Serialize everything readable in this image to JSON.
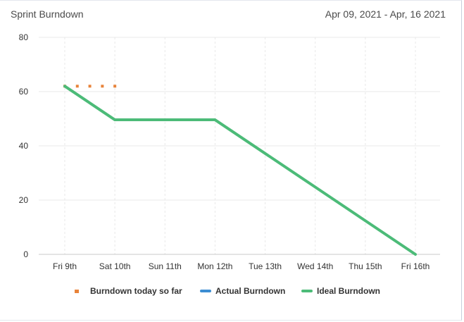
{
  "header": {
    "title": "Sprint Burndown",
    "date_range": "Apr 09, 2021 - Apr, 16 2021"
  },
  "colors": {
    "ideal": "#4cbb78",
    "actual": "#3c8dd2",
    "today": "#e8833a",
    "grid": "#e8e8e8",
    "axis": "#c8c8c8"
  },
  "chart_data": {
    "type": "line",
    "x": [
      "Fri 9th",
      "Sat 10th",
      "Sun 11th",
      "Mon 12th",
      "Tue 13th",
      "Wed 14th",
      "Thu 15th",
      "Fri 16th"
    ],
    "ylim": [
      0,
      80
    ],
    "yticks": [
      0,
      20,
      40,
      60,
      80
    ],
    "grid": true,
    "legend_position": "bottom",
    "series": [
      {
        "name": "Burndown today so far",
        "style": "dotted",
        "points": [
          {
            "x": "Fri 9th",
            "y": 62
          },
          {
            "x": "Sat 10th",
            "y": 62
          }
        ]
      },
      {
        "name": "Actual Burndown",
        "style": "line",
        "points": []
      },
      {
        "name": "Ideal Burndown",
        "style": "line",
        "points": [
          {
            "x": "Fri 9th",
            "y": 62
          },
          {
            "x": "Sat 10th",
            "y": 49.6
          },
          {
            "x": "Sun 11th",
            "y": 49.6
          },
          {
            "x": "Mon 12th",
            "y": 49.6
          },
          {
            "x": "Tue 13th",
            "y": 37.2
          },
          {
            "x": "Wed 14th",
            "y": 24.8
          },
          {
            "x": "Thu 15th",
            "y": 12.4
          },
          {
            "x": "Fri 16th",
            "y": 0
          }
        ]
      }
    ]
  },
  "legend": {
    "items": [
      {
        "label": "Burndown today so far"
      },
      {
        "label": "Actual Burndown"
      },
      {
        "label": "Ideal Burndown"
      }
    ]
  }
}
